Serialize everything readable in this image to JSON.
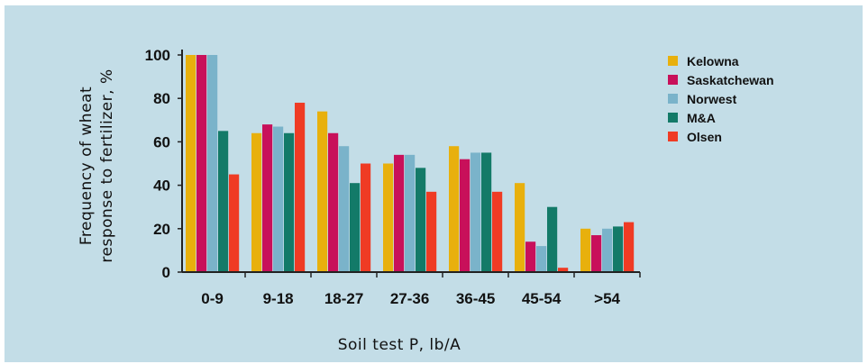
{
  "chart_data": {
    "type": "bar",
    "xlabel": "Soil test P, lb/A",
    "ylabel_line1": "Frequency of wheat",
    "ylabel_line2": "response to fertilizer, %",
    "ylim": [
      0,
      100
    ],
    "yticks": [
      0,
      20,
      40,
      60,
      80,
      100
    ],
    "grid": false,
    "legend_position": "top-right",
    "categories": [
      "0-9",
      "9-18",
      "18-27",
      "27-36",
      "36-45",
      "45-54",
      ">54"
    ],
    "series": [
      {
        "name": "Kelowna",
        "color": "#e8b00d",
        "values": [
          100,
          64,
          74,
          50,
          58,
          41,
          20
        ]
      },
      {
        "name": "Saskatchewan",
        "color": "#c8105a",
        "values": [
          100,
          68,
          64,
          54,
          52,
          14,
          17
        ]
      },
      {
        "name": "Norwest",
        "color": "#7ab3ca",
        "values": [
          100,
          67,
          58,
          54,
          55,
          12,
          20
        ]
      },
      {
        "name": "M&A",
        "color": "#137a68",
        "values": [
          65,
          64,
          41,
          48,
          55,
          30,
          21
        ]
      },
      {
        "name": "Olsen",
        "color": "#ef3b24",
        "values": [
          45,
          78,
          50,
          37,
          37,
          2,
          23
        ]
      }
    ]
  }
}
